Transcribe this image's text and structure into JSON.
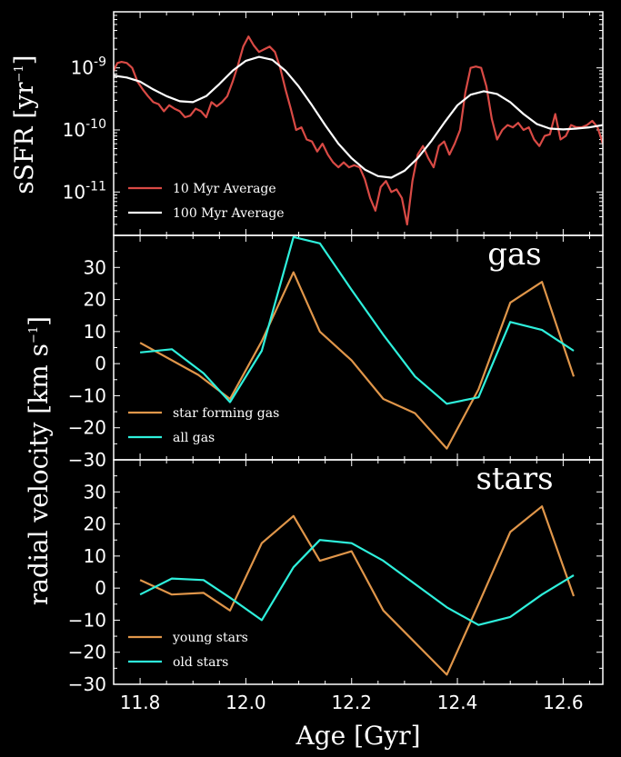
{
  "chart_data": {
    "type": "line",
    "xlabel": "Age [Gyr]",
    "xlim": [
      11.75,
      12.675
    ],
    "xticks": [
      11.8,
      12.0,
      12.2,
      12.4,
      12.6
    ],
    "xtick_labels": [
      "11.8",
      "12.0",
      "12.2",
      "12.4",
      "12.6"
    ],
    "colors": {
      "background": "#000000",
      "axes": "#ffffff",
      "red": "#d94a45",
      "white": "#ffffff",
      "orange": "#e0964a",
      "cyan": "#2ef0dc"
    },
    "panels": [
      {
        "id": "ssfr",
        "ylabel": "sSFR [yr",
        "ylabel_exp": "−1",
        "ylabel_end": "]",
        "yscale": "log",
        "ylim": [
          2e-12,
          8e-09
        ],
        "yticks": [
          1e-09,
          1e-10,
          1e-11
        ],
        "ytick_labels": [
          {
            "base": "10",
            "exp": "-9"
          },
          {
            "base": "10",
            "exp": "-10"
          },
          {
            "base": "10",
            "exp": "-11"
          }
        ],
        "legend_position": "lower-left",
        "series": [
          {
            "name": "10 Myr Average",
            "color": "#d94a45",
            "x": [
              11.75,
              11.757,
              11.765,
              11.775,
              11.785,
              11.795,
              11.805,
              11.815,
              11.825,
              11.835,
              11.845,
              11.855,
              11.865,
              11.875,
              11.885,
              11.895,
              11.905,
              11.915,
              11.925,
              11.935,
              11.945,
              11.955,
              11.965,
              11.975,
              11.985,
              11.995,
              12.005,
              12.015,
              12.025,
              12.035,
              12.045,
              12.055,
              12.065,
              12.075,
              12.085,
              12.095,
              12.105,
              12.115,
              12.125,
              12.135,
              12.145,
              12.155,
              12.165,
              12.175,
              12.185,
              12.195,
              12.205,
              12.215,
              12.225,
              12.235,
              12.245,
              12.255,
              12.265,
              12.275,
              12.285,
              12.295,
              12.305,
              12.315,
              12.325,
              12.335,
              12.345,
              12.355,
              12.365,
              12.375,
              12.385,
              12.395,
              12.405,
              12.415,
              12.425,
              12.435,
              12.445,
              12.455,
              12.465,
              12.475,
              12.485,
              12.495,
              12.505,
              12.515,
              12.525,
              12.535,
              12.545,
              12.555,
              12.565,
              12.575,
              12.585,
              12.595,
              12.605,
              12.615,
              12.625,
              12.635,
              12.645,
              12.655,
              12.665,
              12.675
            ],
            "y": [
              9e-10,
              1.2e-09,
              1.25e-09,
              1.2e-09,
              1e-09,
              6e-10,
              4.5e-10,
              3.5e-10,
              2.8e-10,
              2.6e-10,
              2e-10,
              2.5e-10,
              2.2e-10,
              2e-10,
              1.6e-10,
              1.7e-10,
              2.2e-10,
              2e-10,
              1.6e-10,
              2.8e-10,
              2.4e-10,
              2.8e-10,
              3.5e-10,
              6e-10,
              1.1e-09,
              2.2e-09,
              3.2e-09,
              2.3e-09,
              1.8e-09,
              2e-09,
              2.2e-09,
              1.8e-09,
              1e-09,
              4.5e-10,
              2.2e-10,
              1e-10,
              1.1e-10,
              7e-11,
              6.5e-11,
              4.5e-11,
              6e-11,
              4e-11,
              3e-11,
              2.5e-11,
              3e-11,
              2.5e-11,
              2.7e-11,
              2.5e-11,
              1.6e-11,
              8e-12,
              5e-12,
              1.2e-11,
              1.5e-11,
              1e-11,
              1.1e-11,
              8e-12,
              3e-12,
              1.5e-11,
              4e-11,
              5.5e-11,
              3.5e-11,
              2.5e-11,
              5.5e-11,
              6.5e-11,
              4e-11,
              6e-11,
              1e-10,
              4e-10,
              1e-09,
              1.05e-09,
              1e-09,
              5e-10,
              1.5e-10,
              7e-11,
              1e-10,
              1.2e-10,
              1.1e-10,
              1.3e-10,
              1e-10,
              1.1e-10,
              7e-11,
              5.5e-11,
              8e-11,
              8.5e-11,
              1.8e-10,
              7e-11,
              8e-11,
              1.2e-10,
              1.1e-10,
              1.1e-10,
              1.2e-10,
              1.4e-10,
              1.1e-10,
              6e-11
            ]
          },
          {
            "name": "100 Myr Average",
            "color": "#ffffff",
            "x": [
              11.75,
              11.775,
              11.8,
              11.825,
              11.85,
              11.875,
              11.9,
              11.925,
              11.95,
              11.975,
              12.0,
              12.025,
              12.05,
              12.075,
              12.1,
              12.125,
              12.15,
              12.175,
              12.2,
              12.225,
              12.25,
              12.275,
              12.3,
              12.325,
              12.35,
              12.375,
              12.4,
              12.425,
              12.45,
              12.475,
              12.5,
              12.525,
              12.55,
              12.575,
              12.6,
              12.625,
              12.65,
              12.675
            ],
            "y": [
              7.5e-10,
              7e-10,
              6e-10,
              4.5e-10,
              3.5e-10,
              2.9e-10,
              2.8e-10,
              3.5e-10,
              5.5e-10,
              9e-10,
              1.3e-09,
              1.5e-09,
              1.35e-09,
              9e-10,
              5e-10,
              2.5e-10,
              1.2e-10,
              6e-11,
              3.5e-11,
              2.3e-11,
              1.8e-11,
              1.7e-11,
              2.2e-11,
              3.5e-11,
              6.5e-11,
              1.3e-10,
              2.5e-10,
              3.7e-10,
              4.2e-10,
              3.8e-10,
              2.8e-10,
              1.8e-10,
              1.25e-10,
              1.05e-10,
              1.02e-10,
              1.05e-10,
              1.1e-10,
              1.2e-10
            ]
          }
        ]
      },
      {
        "id": "gas",
        "annotation": "gas",
        "ylim": [
          -30,
          40
        ],
        "yticks": [
          -30,
          -20,
          -10,
          0,
          10,
          20,
          30
        ],
        "ytick_labels": [
          "−30",
          "−20",
          "−10",
          "0",
          "10",
          "20",
          "30"
        ],
        "legend_position": "lower-left",
        "series": [
          {
            "name": "star forming gas",
            "color": "#e0964a",
            "x": [
              11.8,
              11.91,
              11.97,
              12.03,
              12.09,
              12.14,
              12.2,
              12.26,
              12.32,
              12.38,
              12.44,
              12.5,
              12.56,
              12.62
            ],
            "y": [
              6.5,
              -3.5,
              -11,
              7,
              28.5,
              10,
              1,
              -11,
              -15.5,
              -26.5,
              -8,
              19,
              25.5,
              -4
            ]
          },
          {
            "name": "all gas",
            "color": "#2ef0dc",
            "x": [
              11.8,
              11.86,
              11.92,
              11.97,
              12.03,
              12.09,
              12.14,
              12.2,
              12.26,
              12.32,
              12.38,
              12.44,
              12.5,
              12.56,
              12.62
            ],
            "y": [
              3.5,
              4.5,
              -3,
              -12,
              4,
              39.5,
              37.5,
              23,
              9,
              -4,
              -12.5,
              -10.5,
              13,
              10.5,
              4
            ]
          }
        ]
      },
      {
        "id": "stars",
        "annotation": "stars",
        "ylim": [
          -30,
          40
        ],
        "yticks": [
          -30,
          -20,
          -10,
          0,
          10,
          20,
          30
        ],
        "ytick_labels": [
          "−30",
          "−20",
          "−10",
          "0",
          "10",
          "20",
          "30"
        ],
        "legend_position": "lower-left",
        "series": [
          {
            "name": "young stars",
            "color": "#e0964a",
            "x": [
              11.8,
              11.86,
              11.92,
              11.97,
              12.03,
              12.09,
              12.14,
              12.2,
              12.26,
              12.38,
              12.44,
              12.5,
              12.56,
              12.62
            ],
            "y": [
              2.5,
              -2,
              -1.5,
              -7,
              14,
              22.5,
              8.5,
              11.5,
              -7,
              -27,
              -5,
              17.5,
              25.5,
              -2.5
            ]
          },
          {
            "name": "old stars",
            "color": "#2ef0dc",
            "x": [
              11.8,
              11.86,
              11.92,
              11.97,
              12.03,
              12.09,
              12.14,
              12.2,
              12.26,
              12.38,
              12.44,
              12.5,
              12.56,
              12.62
            ],
            "y": [
              -2,
              3,
              2.5,
              -3,
              -10,
              6.5,
              15,
              14,
              8.5,
              -6,
              -11.5,
              -9,
              -2,
              4
            ]
          }
        ]
      }
    ],
    "shared_ylabel": "radial velocity [km s",
    "shared_ylabel_exp": "−1",
    "shared_ylabel_end": "]"
  }
}
